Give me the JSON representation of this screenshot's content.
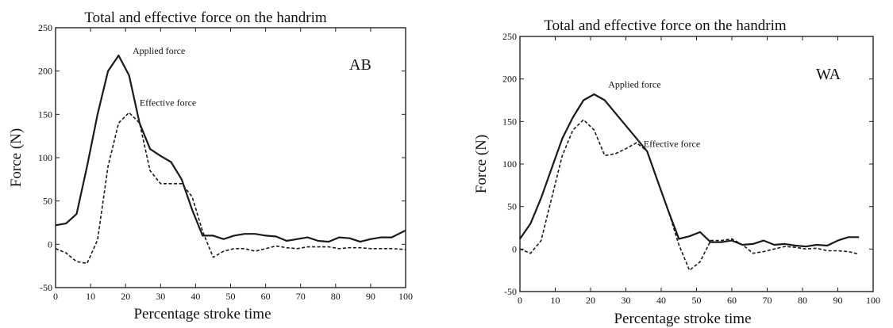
{
  "chart_data": [
    {
      "type": "line",
      "title": "Total and effective force on the handrim",
      "xlabel": "Percentage stroke time",
      "ylabel": "Force (N)",
      "panel_label": "AB",
      "xlim": [
        0,
        100
      ],
      "ylim": [
        -50,
        250
      ],
      "xticks": [
        0,
        10,
        20,
        30,
        40,
        50,
        60,
        70,
        80,
        90,
        100
      ],
      "yticks": [
        -50,
        0,
        50,
        100,
        150,
        200,
        250
      ],
      "grid": false,
      "series": [
        {
          "name": "Applied force",
          "style": "solid",
          "x": [
            0,
            3,
            6,
            9,
            12,
            15,
            18,
            21,
            24,
            27,
            30,
            33,
            36,
            39,
            42,
            45,
            48,
            51,
            54,
            57,
            60,
            63,
            66,
            69,
            72,
            75,
            78,
            81,
            84,
            87,
            90,
            93,
            96,
            100
          ],
          "y": [
            22,
            24,
            35,
            90,
            150,
            200,
            218,
            195,
            140,
            110,
            102,
            95,
            75,
            40,
            10,
            10,
            6,
            10,
            12,
            12,
            10,
            9,
            4,
            6,
            8,
            4,
            3,
            8,
            7,
            3,
            6,
            8,
            8,
            16
          ]
        },
        {
          "name": "Effective force",
          "style": "dashed",
          "x": [
            0,
            3,
            6,
            9,
            12,
            15,
            18,
            21,
            24,
            27,
            30,
            33,
            36,
            39,
            42,
            45,
            48,
            51,
            54,
            57,
            60,
            63,
            66,
            69,
            72,
            75,
            78,
            81,
            84,
            87,
            90,
            93,
            96,
            100
          ],
          "y": [
            -5,
            -10,
            -20,
            -22,
            5,
            90,
            140,
            152,
            140,
            85,
            70,
            70,
            70,
            55,
            15,
            -15,
            -8,
            -5,
            -5,
            -8,
            -5,
            -2,
            -4,
            -5,
            -3,
            -3,
            -3,
            -5,
            -4,
            -4,
            -5,
            -5,
            -5,
            -6
          ]
        }
      ],
      "annotations": [
        {
          "text": "Applied force",
          "x": 22,
          "y": 220
        },
        {
          "text": "Effective force",
          "x": 24,
          "y": 160
        }
      ]
    },
    {
      "type": "line",
      "title": "Total and effective force on the handrim",
      "xlabel": "Percentage stroke time",
      "ylabel": "Force (N)",
      "panel_label": "WA",
      "xlim": [
        0,
        100
      ],
      "ylim": [
        -50,
        250
      ],
      "xticks": [
        0,
        10,
        20,
        30,
        40,
        50,
        60,
        70,
        80,
        90,
        100
      ],
      "yticks": [
        -50,
        0,
        50,
        100,
        150,
        200,
        250
      ],
      "grid": false,
      "series": [
        {
          "name": "Applied force",
          "style": "solid",
          "x": [
            0,
            3,
            6,
            9,
            12,
            15,
            18,
            21,
            24,
            27,
            30,
            33,
            36,
            39,
            42,
            45,
            48,
            51,
            54,
            57,
            60,
            63,
            66,
            69,
            72,
            75,
            78,
            81,
            84,
            87,
            90,
            93,
            96
          ],
          "y": [
            12,
            30,
            60,
            95,
            130,
            155,
            175,
            182,
            175,
            160,
            145,
            130,
            115,
            80,
            45,
            12,
            15,
            20,
            8,
            8,
            10,
            5,
            6,
            10,
            5,
            6,
            4,
            3,
            5,
            4,
            10,
            14,
            14
          ]
        },
        {
          "name": "Effective force",
          "style": "dashed",
          "x": [
            0,
            3,
            6,
            9,
            12,
            15,
            18,
            21,
            24,
            27,
            30,
            33,
            36,
            39,
            42,
            45,
            48,
            51,
            54,
            57,
            60,
            63,
            66,
            69,
            72,
            75,
            78,
            81,
            84,
            87,
            90,
            93,
            96
          ],
          "y": [
            0,
            -5,
            10,
            60,
            110,
            140,
            152,
            140,
            110,
            112,
            118,
            125,
            115,
            80,
            45,
            5,
            -25,
            -15,
            10,
            10,
            12,
            5,
            -5,
            -3,
            0,
            3,
            2,
            0,
            1,
            -2,
            -2,
            -3,
            -6
          ]
        }
      ],
      "annotations": [
        {
          "text": "Applied force",
          "x": 25,
          "y": 190
        },
        {
          "text": "Effective force",
          "x": 35,
          "y": 120
        }
      ]
    }
  ]
}
